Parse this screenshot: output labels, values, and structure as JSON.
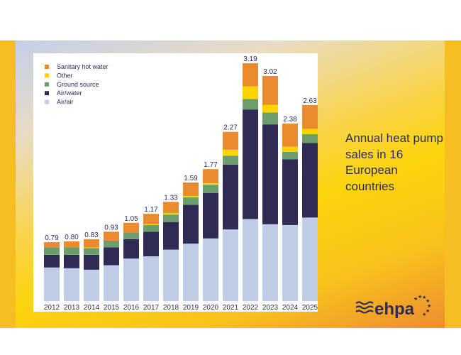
{
  "side_title": "Annual heat pump sales in 16 European countries",
  "logo_text": "ehpa",
  "chart_data": {
    "type": "bar",
    "stacked": true,
    "categories": [
      "2012",
      "2013",
      "2014",
      "2015",
      "2016",
      "2017",
      "2018",
      "2019",
      "2020",
      "2021",
      "2022",
      "2023",
      "2024",
      "2025"
    ],
    "totals": [
      "0.79",
      "0.80",
      "0.83",
      "0.93",
      "1.05",
      "1.17",
      "1.33",
      "1.59",
      "1.77",
      "2.27",
      "3.19",
      "3.02",
      "2.38",
      "2.63"
    ],
    "series": [
      {
        "name": "Air/air",
        "color": "#bfcde6",
        "values": [
          0.45,
          0.44,
          0.42,
          0.48,
          0.57,
          0.6,
          0.69,
          0.77,
          0.84,
          0.96,
          1.1,
          1.03,
          1.02,
          1.12
        ]
      },
      {
        "name": "Air/water",
        "color": "#302b55",
        "values": [
          0.17,
          0.18,
          0.2,
          0.24,
          0.26,
          0.33,
          0.37,
          0.52,
          0.61,
          0.87,
          1.47,
          1.34,
          0.88,
          1.0
        ]
      },
      {
        "name": "Ground source",
        "color": "#6c9e6c",
        "values": [
          0.1,
          0.1,
          0.09,
          0.09,
          0.09,
          0.09,
          0.1,
          0.1,
          0.11,
          0.12,
          0.14,
          0.16,
          0.1,
          0.12
        ]
      },
      {
        "name": "Other",
        "color": "#fdd400",
        "values": [
          0,
          0,
          0.01,
          0,
          0,
          0.01,
          0.02,
          0.02,
          0.02,
          0.08,
          0.17,
          0.1,
          0.07,
          0.07
        ]
      },
      {
        "name": "Sanitary hot water",
        "color": "#eb8b2e",
        "values": [
          0.07,
          0.08,
          0.11,
          0.12,
          0.13,
          0.14,
          0.15,
          0.18,
          0.19,
          0.24,
          0.31,
          0.39,
          0.31,
          0.32
        ]
      }
    ],
    "legend_order": [
      "Sanitary hot water",
      "Other",
      "Ground source",
      "Air/water",
      "Air/air"
    ],
    "legend_position": "top-left",
    "ylim": [
      0,
      3.4
    ],
    "grid": false,
    "y_axis_visible": false
  }
}
